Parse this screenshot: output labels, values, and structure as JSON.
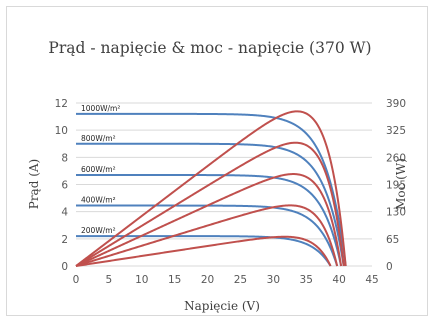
{
  "chart_data": {
    "type": "line",
    "title": "Prąd - napięcie & moc - napięcie (370 W)",
    "xlabel": "Napięcie (V)",
    "ylabel_left": "Prąd (A)",
    "ylabel_right": "Moc (W)",
    "xlim": [
      0,
      45
    ],
    "ylim_left": [
      0,
      12
    ],
    "ylim_right": [
      0,
      390
    ],
    "x_ticks": [
      "0",
      "5",
      "10",
      "15",
      "20",
      "25",
      "30",
      "35",
      "40",
      "45"
    ],
    "y_left_ticks": [
      "0",
      "2",
      "4",
      "6",
      "8",
      "10",
      "12"
    ],
    "y_right_ticks": [
      "0",
      "65",
      "130",
      "195",
      "260",
      "325",
      "390"
    ],
    "grid": "horizontal",
    "colors": {
      "current": "#4f81bd",
      "power": "#c0504d",
      "grid": "#d9d9d9",
      "text": "#595959"
    },
    "series": [
      {
        "label": "1000W/m²",
        "isc": 11.2,
        "voc": 41.0,
        "pmax": 370,
        "vmp": 34.2
      },
      {
        "label": "800W/m²",
        "isc": 9.0,
        "voc": 40.7,
        "pmax": 295,
        "vmp": 34.0
      },
      {
        "label": "600W/m²",
        "isc": 6.7,
        "voc": 40.3,
        "pmax": 220,
        "vmp": 33.8
      },
      {
        "label": "400W/m²",
        "isc": 4.45,
        "voc": 39.7,
        "pmax": 145,
        "vmp": 33.6
      },
      {
        "label": "200W/m²",
        "isc": 2.2,
        "voc": 38.7,
        "pmax": 70,
        "vmp": 33.2
      }
    ]
  }
}
